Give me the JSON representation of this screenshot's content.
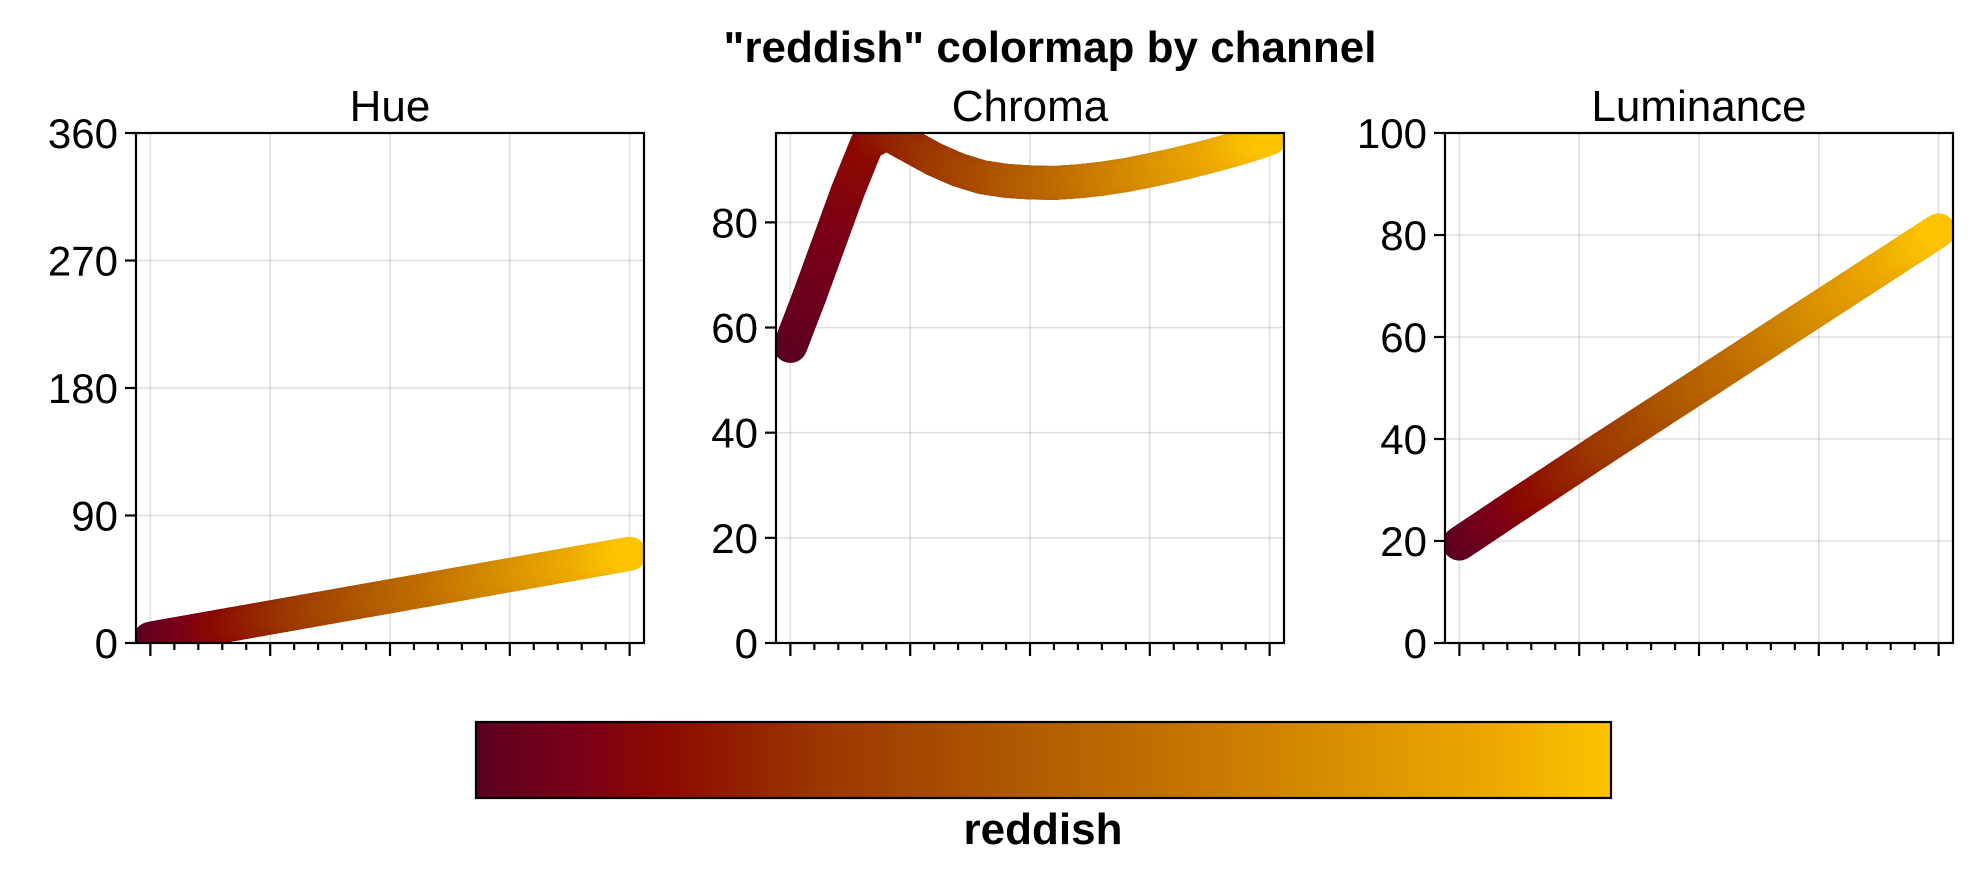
{
  "figure": {
    "title": "\"reddish\" colormap by channel",
    "colorbar_label": "reddish"
  },
  "colors": {
    "colormap_stops": [
      {
        "t": 0.0,
        "color": "#5c0020"
      },
      {
        "t": 0.1,
        "color": "#7c0016"
      },
      {
        "t": 0.16,
        "color": "#8b0900"
      },
      {
        "t": 0.3,
        "color": "#9a3500"
      },
      {
        "t": 0.45,
        "color": "#ac5400"
      },
      {
        "t": 0.6,
        "color": "#c06f00"
      },
      {
        "t": 0.75,
        "color": "#d68d00"
      },
      {
        "t": 0.9,
        "color": "#eda900"
      },
      {
        "t": 1.0,
        "color": "#fcc400"
      }
    ]
  },
  "chart_data": [
    {
      "type": "line",
      "title": "Hue",
      "ylim": [
        0,
        360
      ],
      "yticks": [
        0,
        90,
        180,
        270,
        360
      ],
      "xlim": [
        -0.03,
        1.03
      ],
      "grid": true,
      "series": [
        {
          "x": [
            0,
            0.05,
            0.1,
            0.15,
            0.2,
            0.3,
            0.4,
            0.5,
            0.6,
            0.7,
            0.8,
            0.9,
            1.0
          ],
          "values": [
            3,
            6,
            9,
            12,
            15,
            21,
            27,
            33,
            39,
            45,
            51,
            57,
            63
          ]
        }
      ]
    },
    {
      "type": "line",
      "title": "Chroma",
      "ylim": [
        0,
        97
      ],
      "yticks": [
        0,
        20,
        40,
        60,
        80
      ],
      "xlim": [
        -0.03,
        1.03
      ],
      "grid": true,
      "series": [
        {
          "x": [
            0,
            0.04,
            0.08,
            0.12,
            0.16,
            0.2,
            0.25,
            0.3,
            0.35,
            0.4,
            0.45,
            0.5,
            0.55,
            0.6,
            0.65,
            0.7,
            0.75,
            0.8,
            0.85,
            0.9,
            0.95,
            1.0
          ],
          "values": [
            56.5,
            66,
            76,
            86,
            95,
            97,
            94.5,
            92,
            90,
            88.6,
            87.9,
            87.6,
            87.5,
            87.8,
            88.3,
            89,
            89.9,
            90.9,
            92,
            93.2,
            94.5,
            96
          ]
        }
      ]
    },
    {
      "type": "line",
      "title": "Luminance",
      "ylim": [
        0,
        100
      ],
      "yticks": [
        0,
        20,
        40,
        60,
        80,
        100
      ],
      "xlim": [
        -0.03,
        1.03
      ],
      "grid": true,
      "series": [
        {
          "x": [
            0,
            0.1,
            0.2,
            0.3,
            0.4,
            0.5,
            0.6,
            0.7,
            0.8,
            0.9,
            1.0
          ],
          "values": [
            19.5,
            25.8,
            32,
            38.2,
            44.3,
            50.4,
            56.5,
            62.6,
            68.7,
            74.8,
            80.9
          ]
        }
      ]
    }
  ]
}
